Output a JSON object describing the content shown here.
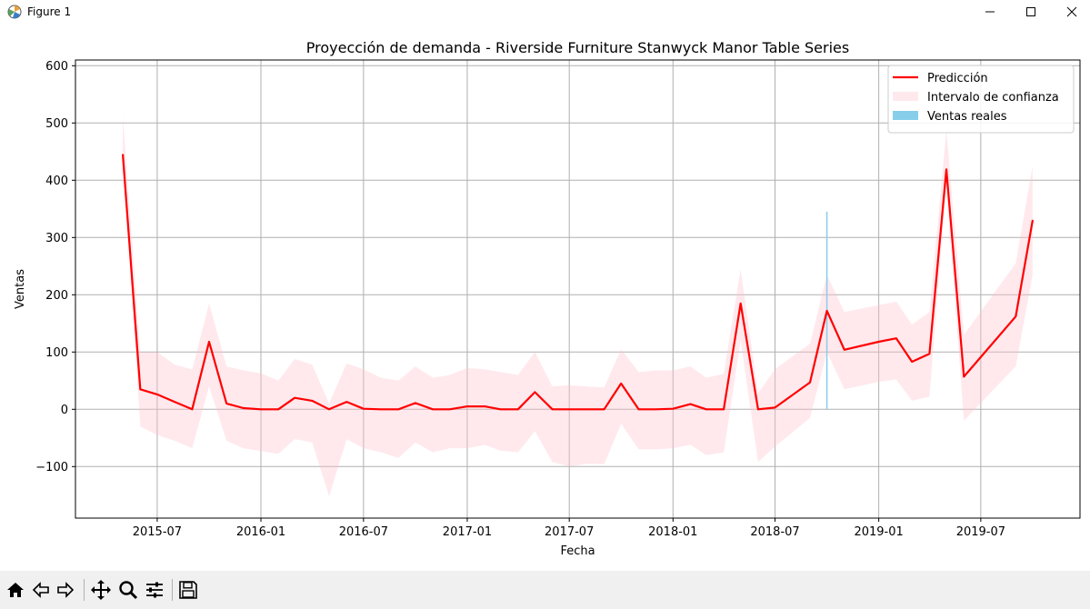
{
  "window": {
    "title": "Figure 1",
    "icon": "matplotlib-icon",
    "controls": [
      "minimize-icon",
      "maximize-icon",
      "close-icon"
    ]
  },
  "toolbar": {
    "buttons": [
      "home-icon",
      "back-icon",
      "forward-icon",
      "pan-icon",
      "zoom-icon",
      "configure-subplots-icon",
      "save-icon"
    ]
  },
  "chart_data": {
    "type": "line",
    "title": "Proyección de demanda - Riverside Furniture Stanwyck Manor Table Series",
    "xlabel": "Fecha",
    "ylabel": "Ventas",
    "ylim": [
      -190,
      610
    ],
    "xlim": [
      "2015-02-06",
      "2019-12-24"
    ],
    "x_ticks": [
      "2015-07",
      "2016-01",
      "2016-07",
      "2017-01",
      "2017-07",
      "2018-01",
      "2018-07",
      "2019-01",
      "2019-07"
    ],
    "x_tick_dates": [
      "2015-07-01",
      "2016-01-01",
      "2016-07-01",
      "2017-01-01",
      "2017-07-01",
      "2018-01-01",
      "2018-07-01",
      "2019-01-01",
      "2019-07-01"
    ],
    "y_ticks": [
      -100,
      0,
      100,
      200,
      300,
      400,
      500,
      600
    ],
    "y_tick_labels": [
      "−100",
      "0",
      "100",
      "200",
      "300",
      "400",
      "500",
      "600"
    ],
    "grid": true,
    "legend": {
      "placement": "top-right",
      "entries": [
        "Predicción",
        "Intervalo de confianza",
        "Ventas reales"
      ]
    },
    "colors": {
      "prediction": "#ff0000",
      "interval": "#ffc0cb",
      "actual": "#87ceeb"
    },
    "series": [
      {
        "name": "Predicción",
        "x": [
          "2015-05-01",
          "2015-06-01",
          "2015-07-01",
          "2015-08-01",
          "2015-09-01",
          "2015-10-01",
          "2015-11-01",
          "2015-12-01",
          "2016-01-01",
          "2016-02-01",
          "2016-03-01",
          "2016-04-01",
          "2016-05-01",
          "2016-06-01",
          "2016-07-01",
          "2016-08-01",
          "2016-09-01",
          "2016-10-01",
          "2016-11-01",
          "2016-12-01",
          "2017-01-01",
          "2017-02-01",
          "2017-03-01",
          "2017-04-01",
          "2017-05-01",
          "2017-06-01",
          "2017-07-01",
          "2017-08-01",
          "2017-09-01",
          "2017-10-01",
          "2017-11-01",
          "2017-12-01",
          "2018-01-01",
          "2018-02-01",
          "2018-03-01",
          "2018-04-01",
          "2018-05-01",
          "2018-06-01",
          "2018-07-01",
          "2018-09-01",
          "2018-10-01",
          "2018-11-01",
          "2019-01-01",
          "2019-02-01",
          "2019-03-01",
          "2019-04-01",
          "2019-05-01",
          "2019-06-01",
          "2019-09-01",
          "2019-10-01"
        ],
        "values": [
          445,
          35,
          26,
          13,
          0,
          118,
          10,
          2,
          0,
          0,
          20,
          15,
          0,
          13,
          1,
          0,
          0,
          11,
          0,
          0,
          5,
          5,
          0,
          0,
          30,
          0,
          0,
          0,
          0,
          45,
          0,
          0,
          1,
          9,
          0,
          0,
          185,
          0,
          3,
          47,
          172,
          104,
          118,
          124,
          83,
          97,
          419,
          57,
          162,
          330
        ],
        "lower": [
          440,
          -30,
          -45,
          -55,
          -68,
          40,
          -55,
          -68,
          -73,
          -78,
          -52,
          -58,
          -152,
          -52,
          -68,
          -75,
          -85,
          -58,
          -75,
          -68,
          -68,
          -62,
          -72,
          -75,
          -38,
          -92,
          -100,
          -95,
          -96,
          -25,
          -70,
          -70,
          -68,
          -62,
          -80,
          -75,
          120,
          -92,
          -65,
          -15,
          100,
          35,
          48,
          52,
          15,
          22,
          390,
          -20,
          75,
          235
        ],
        "upper": [
          512,
          100,
          100,
          78,
          70,
          185,
          75,
          68,
          63,
          50,
          88,
          78,
          10,
          80,
          70,
          55,
          50,
          75,
          55,
          60,
          72,
          70,
          65,
          60,
          100,
          40,
          42,
          40,
          38,
          105,
          65,
          68,
          68,
          75,
          55,
          62,
          245,
          28,
          70,
          115,
          235,
          170,
          182,
          188,
          148,
          170,
          488,
          130,
          255,
          425
        ]
      },
      {
        "name": "Ventas reales",
        "x": [
          "2018-10-01"
        ],
        "values": [
          345
        ]
      }
    ]
  }
}
